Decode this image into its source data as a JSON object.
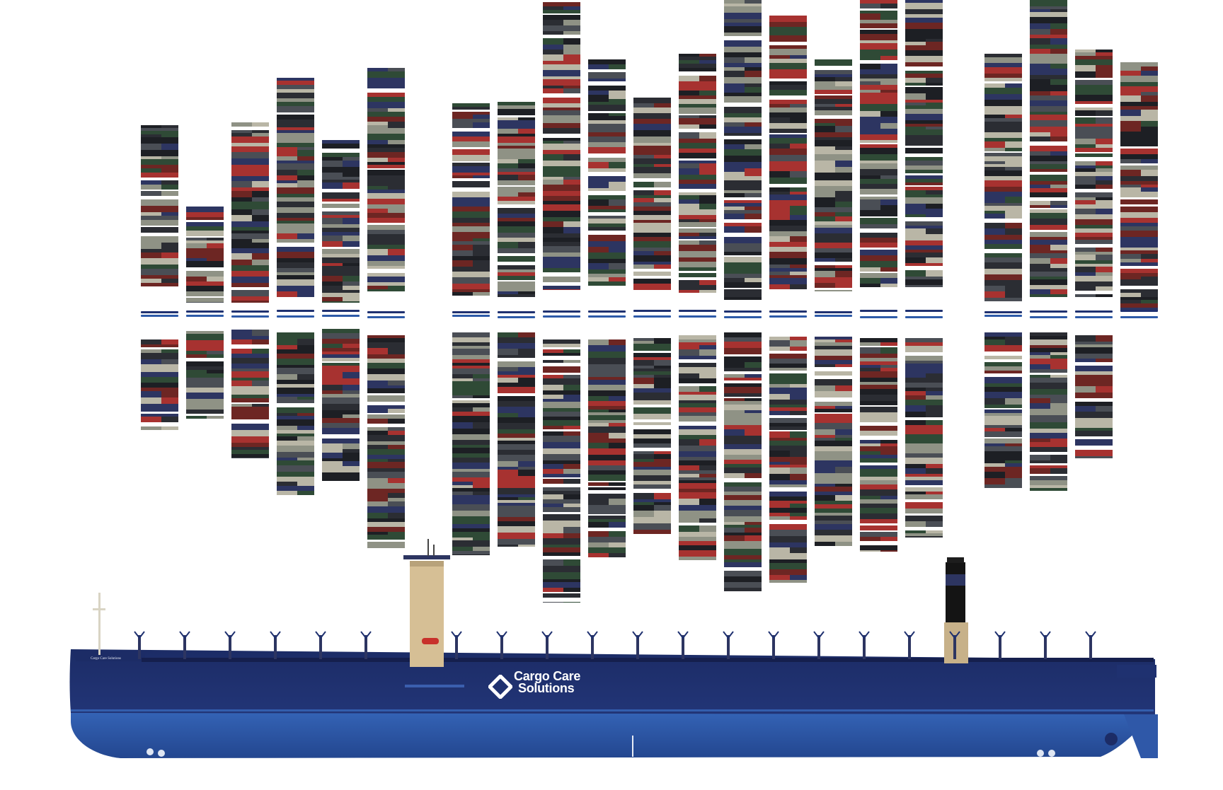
{
  "scene": {
    "subject": "container-ship-exploded-cargo-view",
    "colors": {
      "background": "#ffffff",
      "hull_upper": "#1f3170",
      "hull_lower": "#2f58a8",
      "accommodation": "#d9c29a",
      "funnel": "#111111",
      "container_palette": [
        "#2b2d33",
        "#a73230",
        "#2f4a36",
        "#8f9285",
        "#2d3561",
        "#4a4e55",
        "#6d2623",
        "#b9b6a6",
        "#1d1f24"
      ]
    }
  },
  "ship": {
    "brand": {
      "line1": "Cargo Care",
      "line2": "Solutions",
      "logo": "diamond-arrow-logo-icon"
    },
    "bow_name": "Cargo Care Solutions"
  }
}
